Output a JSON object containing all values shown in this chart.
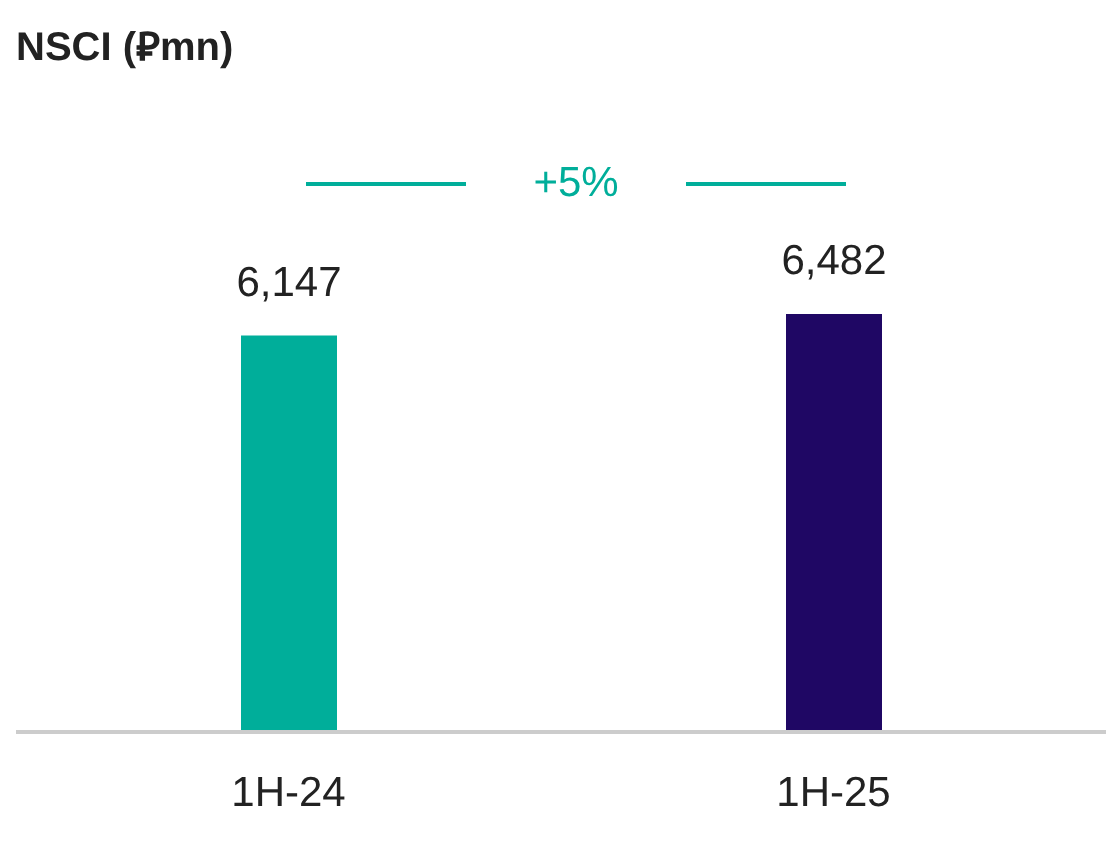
{
  "chart_data": {
    "type": "bar",
    "title": "NSCI (⃁mn)",
    "categories": [
      "1H-24",
      "1H-25"
    ],
    "values": [
      6147,
      6482
    ],
    "colors": [
      "#00ae9a",
      "#1f0764"
    ],
    "value_labels": [
      "6,147",
      "6,482"
    ],
    "tick_labels": "x",
    "annotations": [
      "+5%"
    ]
  }
}
